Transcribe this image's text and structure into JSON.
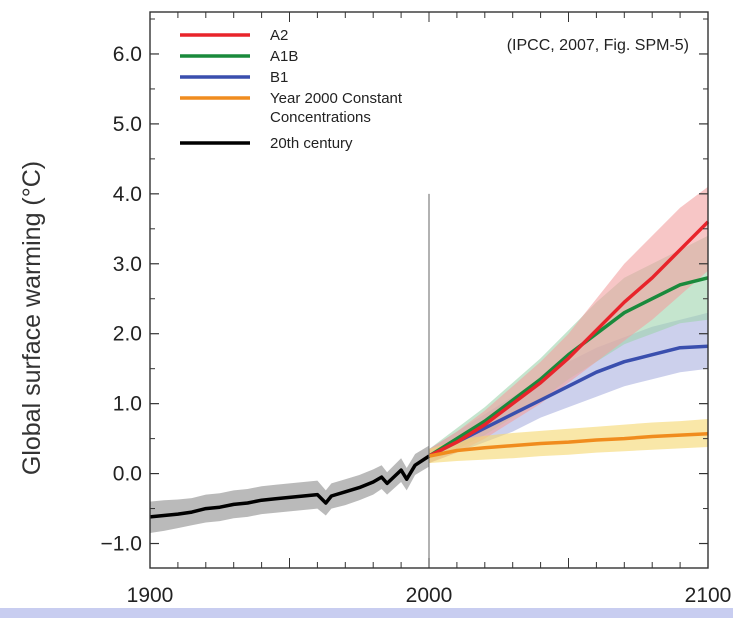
{
  "chart_data": {
    "type": "line",
    "title": "",
    "source_note": "(IPCC, 2007, Fig. SPM-5)",
    "xlabel": "",
    "ylabel": "Global surface warming (°C)",
    "xlim": [
      1900,
      2100
    ],
    "ylim": [
      -1.35,
      6.6
    ],
    "x_ticks": [
      "1900",
      "2000",
      "2100"
    ],
    "y_ticks": [
      "6.0",
      "5.0",
      "4.0",
      "3.0",
      "2.0",
      "1.0",
      "0.0",
      "−1.0"
    ],
    "x_tick_values": [
      1900,
      2000,
      2100
    ],
    "y_tick_values": [
      6,
      5,
      4,
      3,
      2,
      1,
      0,
      -1
    ],
    "grid": false,
    "legend_position": "top-left",
    "divider_year": 2000,
    "series": [
      {
        "name": "A2",
        "color": "#e8242b",
        "band_color": "#f2a0a0",
        "x": [
          2000,
          2010,
          2020,
          2030,
          2040,
          2050,
          2060,
          2070,
          2080,
          2090,
          2100
        ],
        "values": [
          0.25,
          0.45,
          0.7,
          1.0,
          1.3,
          1.65,
          2.05,
          2.45,
          2.8,
          3.2,
          3.6
        ],
        "lower": [
          0.15,
          0.3,
          0.5,
          0.75,
          1.0,
          1.3,
          1.6,
          1.9,
          2.2,
          2.55,
          2.9
        ],
        "upper": [
          0.35,
          0.6,
          0.9,
          1.25,
          1.6,
          2.0,
          2.5,
          3.0,
          3.4,
          3.8,
          4.1
        ]
      },
      {
        "name": "A1B",
        "color": "#1a8a3c",
        "band_color": "#9fd3ad",
        "x": [
          2000,
          2010,
          2020,
          2030,
          2040,
          2050,
          2060,
          2070,
          2080,
          2090,
          2100
        ],
        "values": [
          0.25,
          0.5,
          0.75,
          1.05,
          1.35,
          1.7,
          2.0,
          2.3,
          2.5,
          2.7,
          2.8
        ],
        "lower": [
          0.15,
          0.35,
          0.55,
          0.8,
          1.05,
          1.35,
          1.6,
          1.85,
          2.0,
          2.15,
          2.2
        ],
        "upper": [
          0.35,
          0.65,
          0.95,
          1.3,
          1.65,
          2.05,
          2.45,
          2.8,
          3.0,
          3.2,
          3.4
        ]
      },
      {
        "name": "B1",
        "color": "#3a4fae",
        "band_color": "#aab0e0",
        "x": [
          2000,
          2010,
          2020,
          2030,
          2040,
          2050,
          2060,
          2070,
          2080,
          2090,
          2100
        ],
        "values": [
          0.25,
          0.45,
          0.65,
          0.85,
          1.05,
          1.25,
          1.45,
          1.6,
          1.7,
          1.8,
          1.82
        ],
        "lower": [
          0.15,
          0.3,
          0.45,
          0.6,
          0.8,
          0.95,
          1.1,
          1.25,
          1.35,
          1.45,
          1.5
        ],
        "upper": [
          0.35,
          0.6,
          0.85,
          1.1,
          1.35,
          1.6,
          1.8,
          1.95,
          2.1,
          2.2,
          2.3
        ]
      },
      {
        "name": "Year 2000 Constant Concentrations",
        "legend_lines": [
          "Year 2000 Constant",
          "Concentrations"
        ],
        "color": "#f08c1e",
        "band_color": "#f5d76e",
        "x": [
          2000,
          2010,
          2020,
          2030,
          2040,
          2050,
          2060,
          2070,
          2080,
          2090,
          2100
        ],
        "values": [
          0.25,
          0.33,
          0.37,
          0.4,
          0.43,
          0.45,
          0.48,
          0.5,
          0.53,
          0.55,
          0.57
        ],
        "lower": [
          0.15,
          0.18,
          0.2,
          0.22,
          0.25,
          0.27,
          0.3,
          0.32,
          0.34,
          0.36,
          0.38
        ],
        "upper": [
          0.35,
          0.48,
          0.54,
          0.58,
          0.61,
          0.64,
          0.67,
          0.7,
          0.73,
          0.75,
          0.78
        ]
      },
      {
        "name": "20th century",
        "color": "#000000",
        "band_color": "#8c8c8c",
        "x": [
          1900,
          1905,
          1910,
          1915,
          1920,
          1925,
          1930,
          1935,
          1940,
          1945,
          1950,
          1955,
          1960,
          1963,
          1965,
          1970,
          1975,
          1980,
          1983,
          1985,
          1990,
          1992,
          1995,
          2000
        ],
        "values": [
          -0.62,
          -0.6,
          -0.58,
          -0.55,
          -0.5,
          -0.48,
          -0.44,
          -0.42,
          -0.38,
          -0.36,
          -0.34,
          -0.32,
          -0.3,
          -0.42,
          -0.32,
          -0.26,
          -0.2,
          -0.12,
          -0.05,
          -0.14,
          0.05,
          -0.08,
          0.12,
          0.25
        ],
        "lower": [
          -0.85,
          -0.82,
          -0.78,
          -0.74,
          -0.7,
          -0.68,
          -0.64,
          -0.62,
          -0.58,
          -0.56,
          -0.54,
          -0.52,
          -0.5,
          -0.6,
          -0.5,
          -0.45,
          -0.38,
          -0.3,
          -0.22,
          -0.3,
          -0.12,
          -0.24,
          -0.02,
          0.1
        ],
        "upper": [
          -0.4,
          -0.38,
          -0.37,
          -0.35,
          -0.3,
          -0.28,
          -0.24,
          -0.22,
          -0.18,
          -0.16,
          -0.14,
          -0.12,
          -0.1,
          -0.24,
          -0.14,
          -0.08,
          -0.02,
          0.06,
          0.12,
          0.02,
          0.22,
          0.08,
          0.28,
          0.4
        ]
      }
    ],
    "legend_order": [
      "A2",
      "A1B",
      "B1",
      "Year 2000 Constant Concentrations",
      "20th century"
    ]
  }
}
